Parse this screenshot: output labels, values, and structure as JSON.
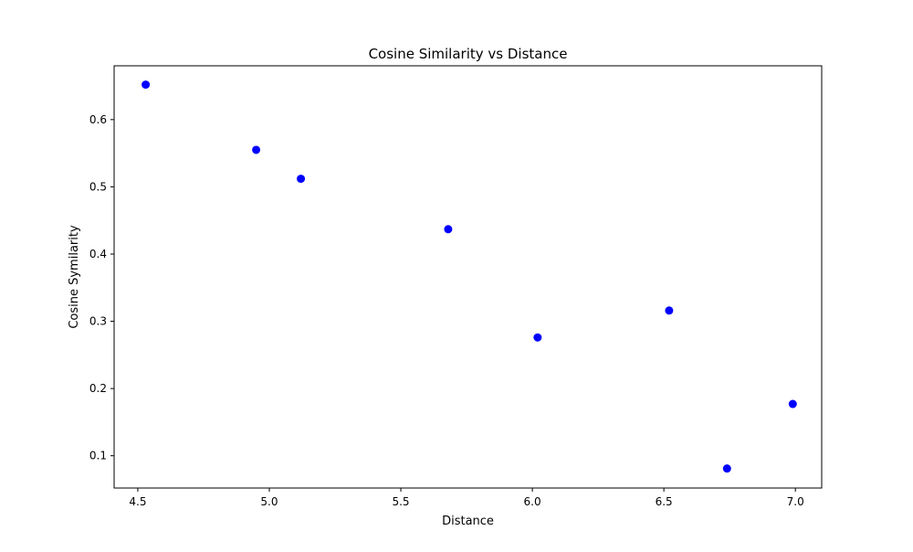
{
  "chart_data": {
    "type": "scatter",
    "title": "Cosine Similarity vs Distance",
    "xlabel": "Distance",
    "ylabel": "Cosine Symilarity",
    "xlim": [
      4.41,
      7.1
    ],
    "ylim": [
      0.052,
      0.68
    ],
    "xticks": [
      4.5,
      5.0,
      5.5,
      6.0,
      6.5,
      7.0
    ],
    "xtick_labels": [
      "4.5",
      "5.0",
      "5.5",
      "6.0",
      "6.5",
      "7.0"
    ],
    "yticks": [
      0.1,
      0.2,
      0.3,
      0.4,
      0.5,
      0.6
    ],
    "ytick_labels": [
      "0.1",
      "0.2",
      "0.3",
      "0.4",
      "0.5",
      "0.6"
    ],
    "grid": false,
    "marker_color": "#0000ff",
    "series": [
      {
        "x": [
          4.53,
          4.95,
          5.12,
          5.68,
          6.02,
          6.52,
          6.74,
          6.99
        ],
        "y": [
          0.652,
          0.555,
          0.512,
          0.437,
          0.276,
          0.316,
          0.081,
          0.177
        ]
      }
    ]
  }
}
